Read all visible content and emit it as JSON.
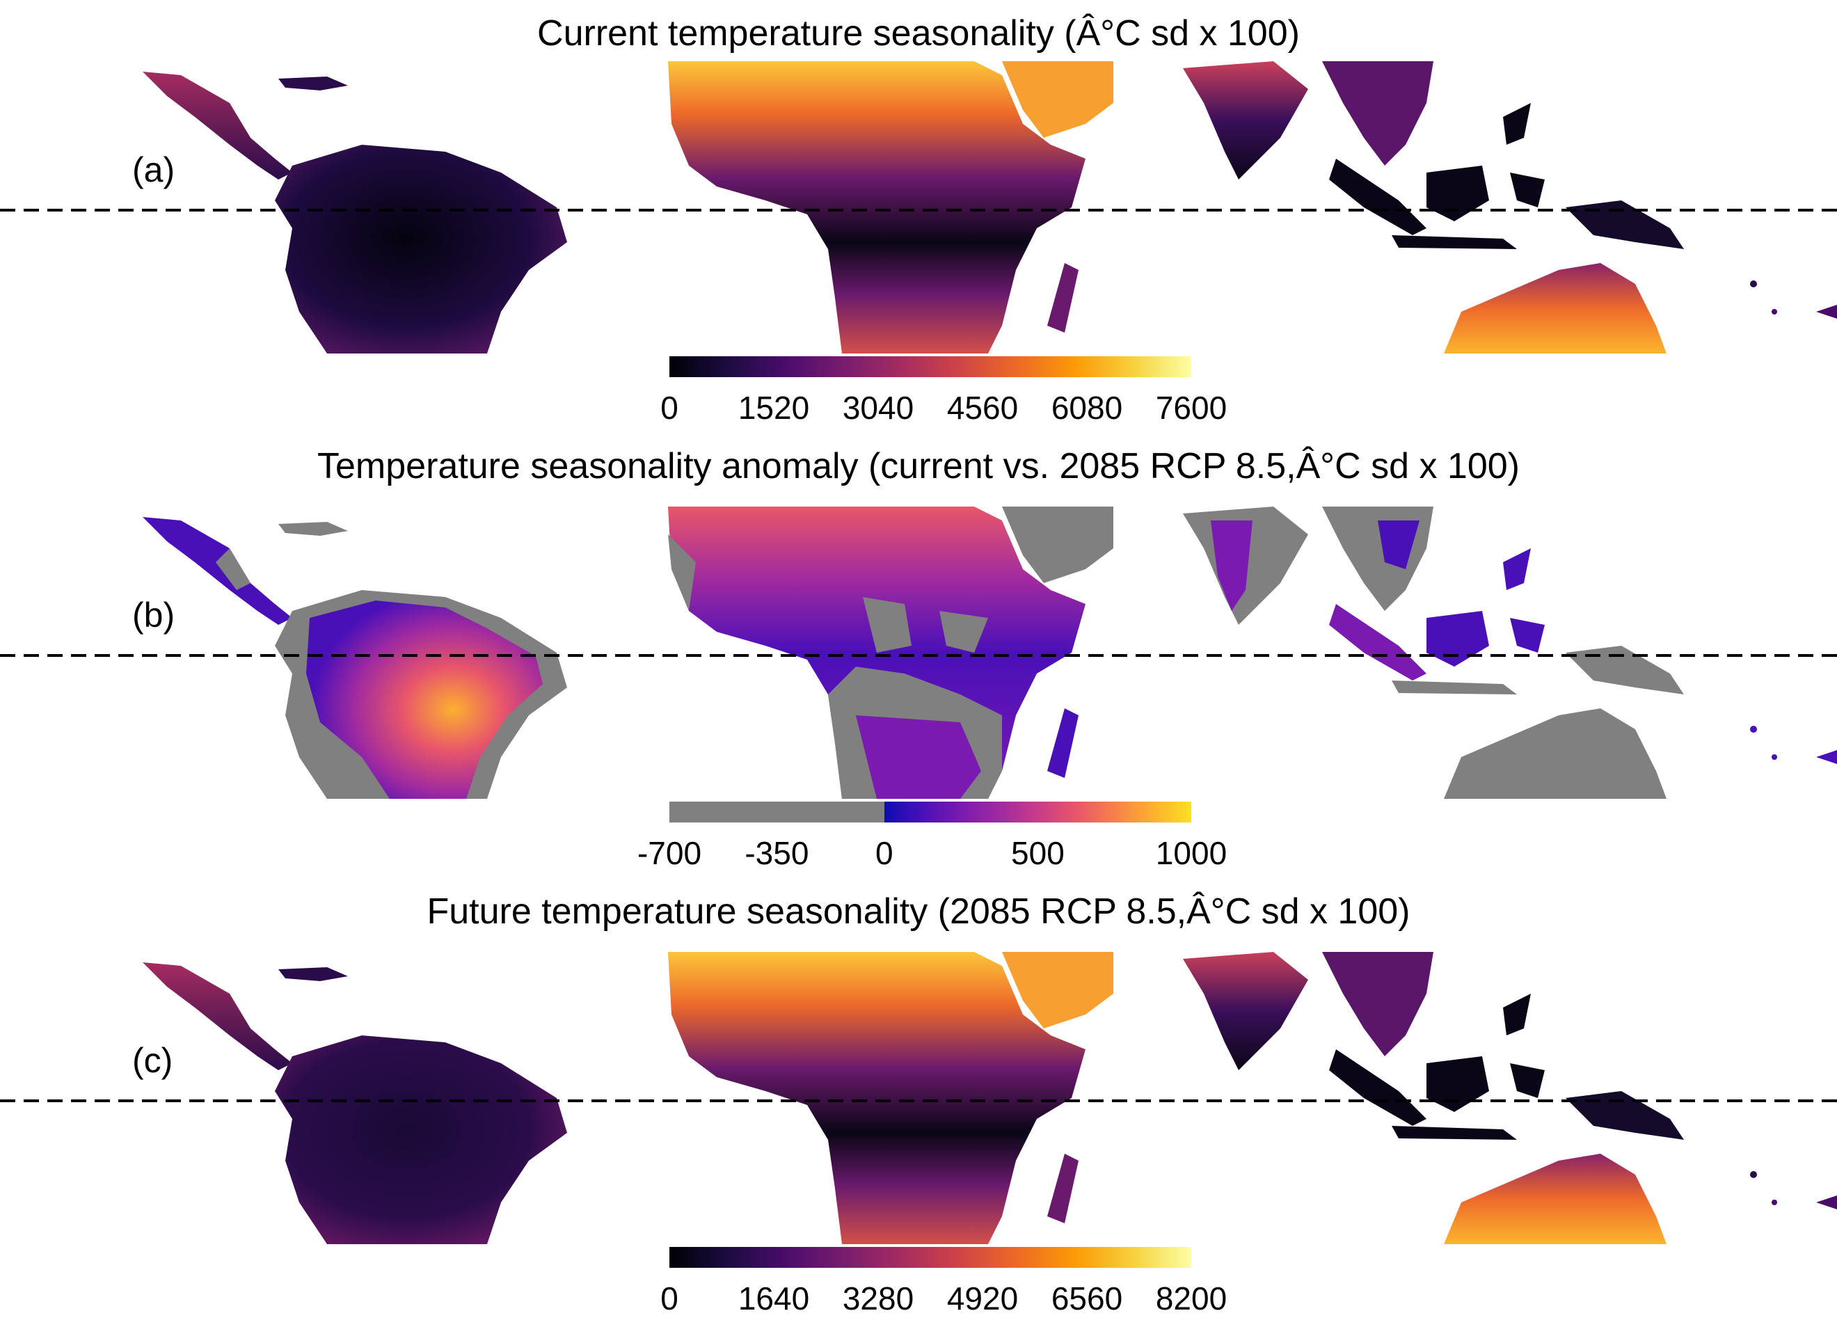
{
  "panels": [
    {
      "id": "a",
      "label": "(a)",
      "title": "Current temperature seasonality (Â°C sd x 100)",
      "colorbar": {
        "min": 0,
        "max": 7600,
        "ticks": [
          "0",
          "1520",
          "3040",
          "4560",
          "6080",
          "7600"
        ],
        "tick_values": [
          0,
          1520,
          3040,
          4560,
          6080,
          7600
        ],
        "palette": [
          "#000004",
          "#1b0c41",
          "#4a0c6b",
          "#781c6d",
          "#a52c60",
          "#cf4446",
          "#ed6925",
          "#fb9b06",
          "#f7d13d",
          "#fcffa4"
        ]
      }
    },
    {
      "id": "b",
      "label": "(b)",
      "title": "Temperature seasonality anomaly (current vs. 2085 RCP 8.5,Â°C sd x 100)",
      "colorbar": {
        "min": -700,
        "max": 1000,
        "ticks": [
          "-700",
          "-350",
          "0",
          "500",
          "1000"
        ],
        "tick_values": [
          -700,
          -350,
          0,
          500,
          1000
        ],
        "negative_color": "#808080",
        "palette": [
          "#0c0cb0",
          "#4a10b8",
          "#7a1ab0",
          "#a02aa0",
          "#c83c88",
          "#e8566a",
          "#f8804a",
          "#fcb030",
          "#fce020"
        ]
      }
    },
    {
      "id": "c",
      "label": "(c)",
      "title": "Future temperature seasonality (2085 RCP 8.5,Â°C sd x 100)",
      "colorbar": {
        "min": 0,
        "max": 8200,
        "ticks": [
          "0",
          "1640",
          "3280",
          "4920",
          "6560",
          "8200"
        ],
        "tick_values": [
          0,
          1640,
          3280,
          4920,
          6560,
          8200
        ],
        "palette": [
          "#000004",
          "#1b0c41",
          "#4a0c6b",
          "#781c6d",
          "#a52c60",
          "#cf4446",
          "#ed6925",
          "#fb9b06",
          "#f7d13d",
          "#fcffa4"
        ]
      }
    }
  ]
}
